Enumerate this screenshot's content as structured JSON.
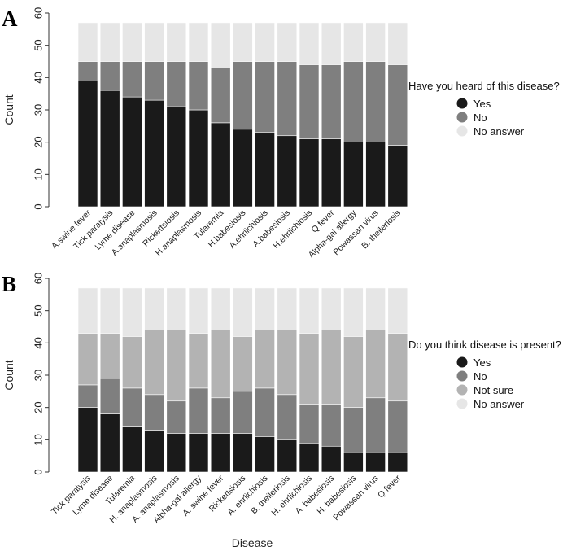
{
  "chart_data": [
    {
      "type": "bar",
      "stacked": true,
      "panel_label": "A",
      "title": "",
      "xlabel": "",
      "ylabel": "Count",
      "ylim": [
        0,
        60
      ],
      "yticks": [
        0,
        10,
        20,
        30,
        40,
        50,
        60
      ],
      "legend_title": "Have you heard of this disease?",
      "legend_position": "right",
      "categories": [
        "A.swine fever",
        "Tick paralysis",
        "Lyme disease",
        "A.anaplasmosis",
        "Rickettsiosis",
        "H.anaplasmosis",
        "Tularemia",
        "H.babesiosis",
        "A.ehrlichiosis",
        "A.babesiosis",
        "H.ehrlichiosis",
        "Q fever",
        "Alpha-gal allergy",
        "Powassan virus",
        "B. theileriosis"
      ],
      "series": [
        {
          "name": "Yes",
          "color": "#1a1a1a",
          "values": [
            39,
            36,
            34,
            33,
            31,
            30,
            26,
            24,
            23,
            22,
            21,
            21,
            20,
            20,
            19
          ]
        },
        {
          "name": "No",
          "color": "#7f7f7f",
          "values": [
            6,
            9,
            11,
            12,
            14,
            15,
            17,
            21,
            22,
            23,
            23,
            23,
            25,
            25,
            25
          ]
        },
        {
          "name": "No answer",
          "color": "#e6e6e6",
          "values": [
            12,
            12,
            12,
            12,
            12,
            12,
            14,
            12,
            12,
            12,
            13,
            13,
            12,
            12,
            13
          ]
        }
      ]
    },
    {
      "type": "bar",
      "stacked": true,
      "panel_label": "B",
      "title": "",
      "xlabel": "Disease",
      "ylabel": "Count",
      "ylim": [
        0,
        60
      ],
      "yticks": [
        0,
        10,
        20,
        30,
        40,
        50,
        60
      ],
      "legend_title": "Do you think disease is present?",
      "legend_position": "right",
      "categories": [
        "Tick paralysis",
        "Lyme disease",
        "Tularemia",
        "H. anaplasmosis",
        "A. anaplasmosis",
        "Alpha-gal allergy",
        "A. swine fever",
        "Rickettsiosis",
        "A. ehrlichiosis",
        "B. theileriosis",
        "H. ehrlichiosis",
        "A. babesiosis",
        "H. babesiosis",
        "Powassan virus",
        "Q fever"
      ],
      "series": [
        {
          "name": "Yes",
          "color": "#1a1a1a",
          "values": [
            20,
            18,
            14,
            13,
            12,
            12,
            12,
            12,
            11,
            10,
            9,
            8,
            6,
            6,
            6
          ]
        },
        {
          "name": "No",
          "color": "#7f7f7f",
          "values": [
            7,
            11,
            12,
            11,
            10,
            14,
            11,
            13,
            15,
            14,
            12,
            13,
            14,
            17,
            16
          ]
        },
        {
          "name": "Not sure",
          "color": "#b3b3b3",
          "values": [
            16,
            14,
            16,
            20,
            22,
            17,
            21,
            17,
            18,
            20,
            22,
            23,
            22,
            21,
            21
          ]
        },
        {
          "name": "No answer",
          "color": "#e6e6e6",
          "values": [
            14,
            14,
            15,
            13,
            13,
            14,
            13,
            15,
            13,
            13,
            14,
            13,
            15,
            13,
            14
          ]
        }
      ]
    }
  ]
}
